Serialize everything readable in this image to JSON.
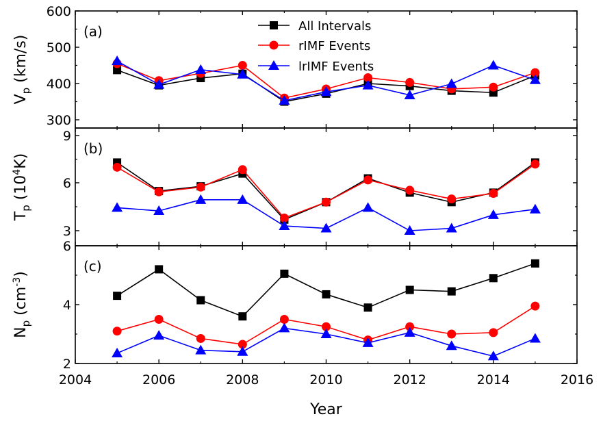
{
  "chart_data": {
    "type": "line",
    "xlabel": "Year",
    "xlim": [
      2004,
      2016
    ],
    "xticks": [
      "2004",
      "2006",
      "2008",
      "2010",
      "2012",
      "2014",
      "2016"
    ],
    "x": [
      2005,
      2006,
      2007,
      2008,
      2009,
      2010,
      2011,
      2012,
      2013,
      2014,
      2015
    ],
    "legend": {
      "placement": "top-center",
      "entries": [
        "All Intervals",
        "rIMF Events",
        "lrIMF Events"
      ]
    },
    "series_styles": [
      {
        "name": "All Intervals",
        "color": "#000000",
        "marker": "square"
      },
      {
        "name": "rIMF Events",
        "color": "#ff0000",
        "marker": "circle"
      },
      {
        "name": "lrIMF Events",
        "color": "#0000ff",
        "marker": "triangle"
      }
    ],
    "panels": [
      {
        "label": "(a)",
        "ylabel_main": "V",
        "ylabel_sub": "p",
        "ylabel_tail": " (km/s)",
        "ylim": [
          290,
          600
        ],
        "yticks": [
          "300",
          "400",
          "500",
          "600"
        ],
        "series": [
          {
            "name": "All Intervals",
            "values": [
              437,
              395,
              415,
              427,
              350,
              372,
              400,
              393,
              380,
              375,
              422
            ]
          },
          {
            "name": "rIMF Events",
            "values": [
              455,
              408,
              428,
              450,
              360,
              385,
              416,
              403,
              385,
              390,
              430
            ]
          },
          {
            "name": "lrIMF Events",
            "values": [
              462,
              397,
              438,
              425,
              353,
              377,
              395,
              368,
              399,
              450,
              410
            ]
          }
        ]
      },
      {
        "label": "(b)",
        "ylabel_main": "T",
        "ylabel_sub": "p",
        "ylabel_tail_pre": " (10",
        "ylabel_sup": "4",
        "ylabel_tail_post": "K)",
        "ylim": [
          2.9,
          9.1
        ],
        "yticks": [
          "3",
          "6",
          "9"
        ],
        "series": [
          {
            "name": "All Intervals",
            "values": [
              7.3,
              5.5,
              5.8,
              6.6,
              3.7,
              4.8,
              6.3,
              5.4,
              4.8,
              5.4,
              7.3
            ]
          },
          {
            "name": "rIMF Events",
            "values": [
              7.0,
              5.45,
              5.75,
              6.85,
              3.8,
              4.8,
              6.2,
              5.55,
              5.0,
              5.35,
              7.2
            ]
          },
          {
            "name": "lrIMF Events",
            "values": [
              4.45,
              4.25,
              4.95,
              4.95,
              3.3,
              3.15,
              4.45,
              3.0,
              3.15,
              4.0,
              4.35
            ]
          }
        ]
      },
      {
        "label": "(c)",
        "ylabel_main": "N",
        "ylabel_sub": "p",
        "ylabel_tail_pre": " (cm",
        "ylabel_sup": "-3",
        "ylabel_tail_post": ")",
        "ylim": [
          2,
          6
        ],
        "yticks": [
          "2",
          "4",
          "6"
        ],
        "series": [
          {
            "name": "All Intervals",
            "values": [
              4.3,
              5.2,
              4.15,
              3.6,
              5.05,
              4.35,
              3.9,
              4.5,
              4.45,
              4.9,
              5.4
            ]
          },
          {
            "name": "rIMF Events",
            "values": [
              3.1,
              3.5,
              2.85,
              2.65,
              3.5,
              3.25,
              2.8,
              3.25,
              3.0,
              3.05,
              3.95
            ]
          },
          {
            "name": "lrIMF Events",
            "values": [
              2.35,
              2.95,
              2.45,
              2.4,
              3.2,
              3.0,
              2.7,
              3.05,
              2.6,
              2.25,
              2.85
            ]
          }
        ]
      }
    ]
  }
}
